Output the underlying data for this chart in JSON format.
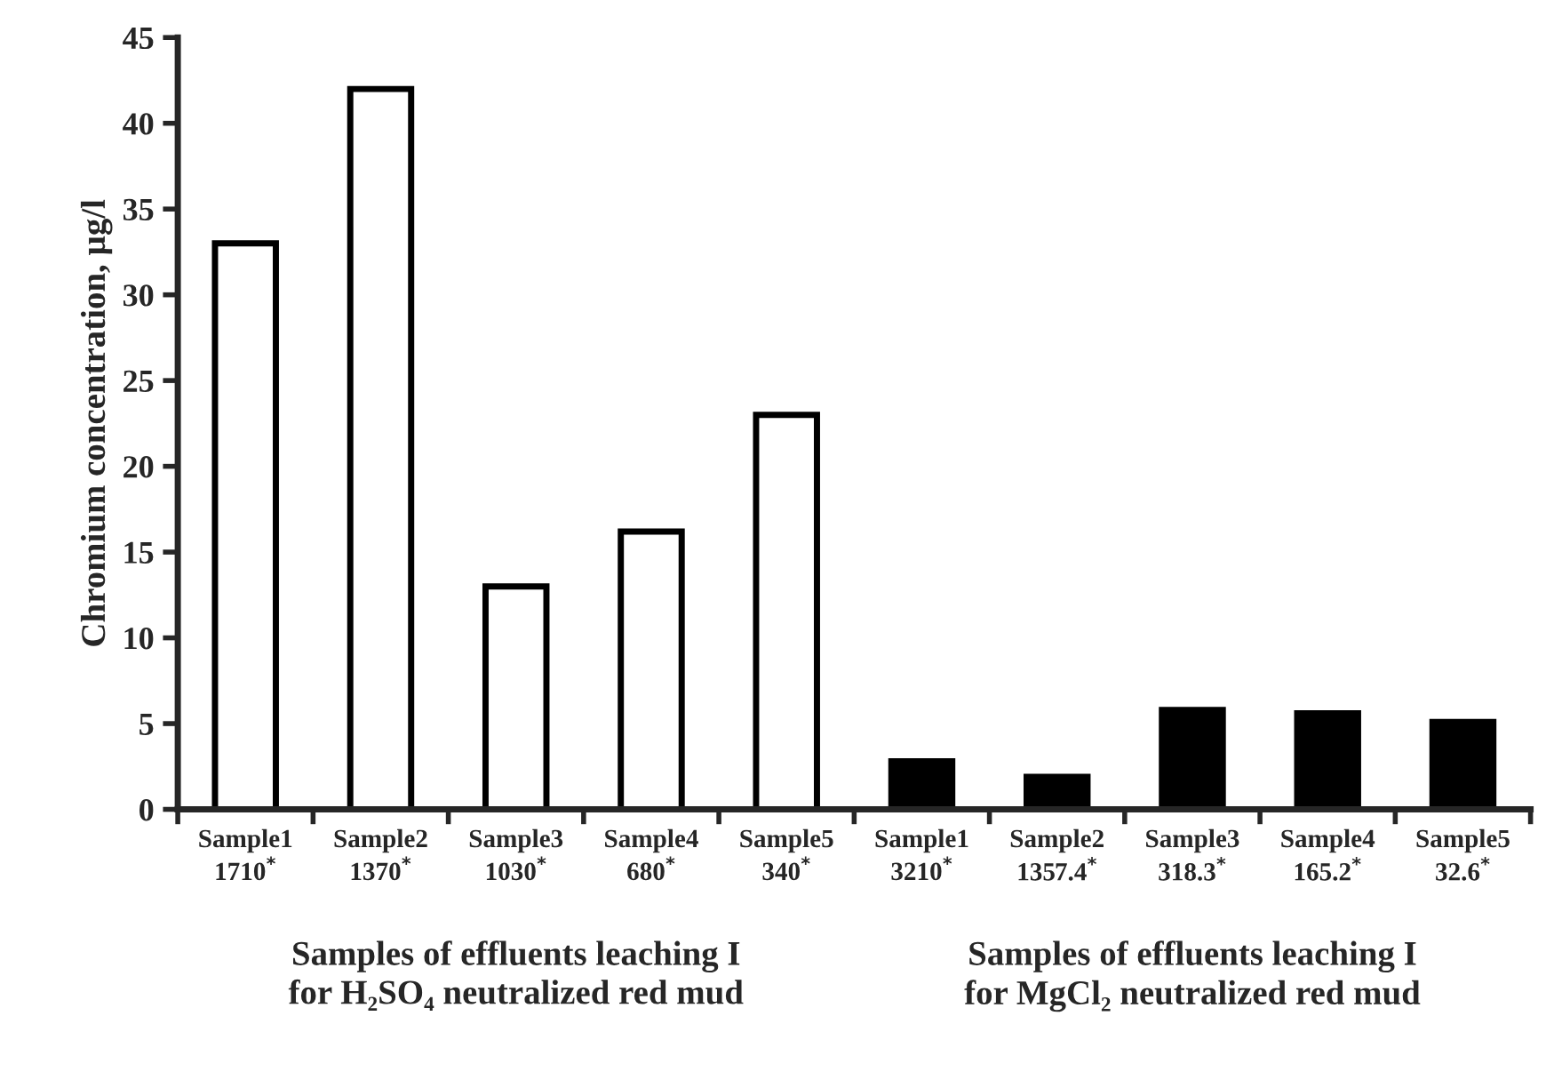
{
  "chart_data": {
    "type": "bar",
    "ylabel": "Chromium concentration, µg/l",
    "categories": [
      "Sample1\n1710$^{*}$",
      "Sample2\n1370$^{*}$",
      "Sample3\n1030$^{*}$",
      "Sample4\n680$^{*}$",
      "Sample5\n340$^{*}$",
      "Sample1\n3210$^{*}$",
      "Sample2\n1357.4$^{*}$",
      "Sample3\n318.3$^{*}$",
      "Sample4\n165.2$^{*}$",
      "Sample5\n32.6$^{*}$"
    ],
    "values": [
      33,
      42,
      13,
      16.2,
      23,
      2.8,
      1.9,
      5.8,
      5.6,
      5.1
    ],
    "colors": [
      "#ffffff",
      "#ffffff",
      "#ffffff",
      "#ffffff",
      "#ffffff",
      "#000000",
      "#000000",
      "#000000",
      "#000000",
      "#000000"
    ],
    "ylim": [
      0,
      45
    ],
    "yticks": [
      0,
      5,
      10,
      15,
      20,
      25,
      30,
      35,
      40,
      45
    ],
    "grid": false,
    "legend": false,
    "annotations": [
      "Samples of effluents leaching I\nfor H₂SO₄ neutralized red mud",
      "Samples of effluents leaching I\nfor MgCl₂ neutralized red mud"
    ]
  }
}
